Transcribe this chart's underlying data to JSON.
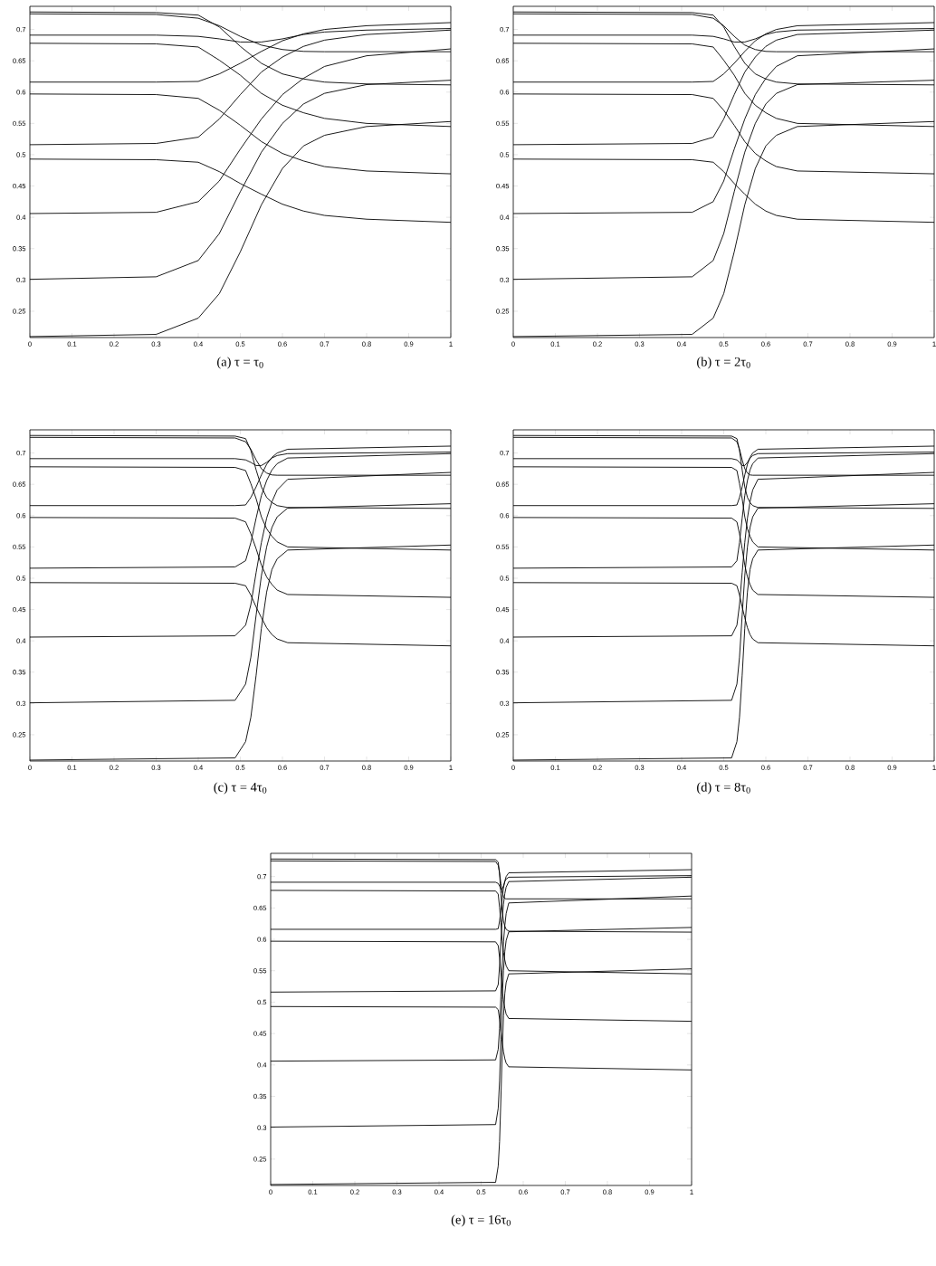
{
  "chart_data": [
    {
      "type": "line",
      "title": "(a) τ = τ$_{0}$",
      "x": [
        0,
        0.3,
        0.4,
        0.45,
        0.5,
        0.55,
        0.6,
        0.65,
        0.7,
        0.8,
        1
      ],
      "xlim": [
        0,
        1
      ],
      "ylim": [
        0.208,
        0.737
      ],
      "xticks": [
        0,
        0.1,
        0.2,
        0.3,
        0.4,
        0.5,
        0.6,
        0.7,
        0.8,
        0.9,
        1
      ],
      "yticks": [
        0.25,
        0.3,
        0.35,
        0.4,
        0.45,
        0.5,
        0.55,
        0.6,
        0.65,
        0.7
      ],
      "marker": "none",
      "line_style": "solid",
      "series": [
        {
          "color": "#000000",
          "values": [
            0.728,
            0.727,
            0.723,
            0.704,
            0.673,
            0.646,
            0.629,
            0.621,
            0.616,
            0.613,
            0.6115
          ]
        },
        {
          "color": "#000000",
          "values": [
            0.725,
            0.724,
            0.718,
            0.706,
            0.689,
            0.675,
            0.668,
            0.665,
            0.6645,
            0.6645,
            0.6645
          ]
        },
        {
          "color": "#000000",
          "values": [
            0.691,
            0.691,
            0.689,
            0.685,
            0.68,
            0.68,
            0.685,
            0.692,
            0.696,
            0.699,
            0.7015
          ]
        },
        {
          "color": "#000000",
          "values": [
            0.616,
            0.616,
            0.617,
            0.629,
            0.646,
            0.665,
            0.682,
            0.693,
            0.7,
            0.706,
            0.711
          ]
        },
        {
          "color": "#000000",
          "values": [
            0.678,
            0.677,
            0.672,
            0.651,
            0.627,
            0.598,
            0.579,
            0.567,
            0.558,
            0.55,
            0.545
          ]
        },
        {
          "color": "#000000",
          "values": [
            0.597,
            0.596,
            0.59,
            0.571,
            0.547,
            0.521,
            0.502,
            0.49,
            0.481,
            0.474,
            0.4695
          ]
        },
        {
          "color": "#000000",
          "values": [
            0.516,
            0.518,
            0.528,
            0.557,
            0.596,
            0.632,
            0.656,
            0.673,
            0.683,
            0.692,
            0.699
          ]
        },
        {
          "color": "#000000",
          "values": [
            0.493,
            0.492,
            0.488,
            0.473,
            0.454,
            0.437,
            0.421,
            0.41,
            0.403,
            0.397,
            0.392
          ]
        },
        {
          "color": "#000000",
          "values": [
            0.406,
            0.408,
            0.425,
            0.458,
            0.509,
            0.557,
            0.596,
            0.622,
            0.641,
            0.658,
            0.669
          ]
        },
        {
          "color": "#000000",
          "values": [
            0.301,
            0.305,
            0.331,
            0.374,
            0.441,
            0.504,
            0.55,
            0.581,
            0.598,
            0.612,
            0.619
          ]
        },
        {
          "color": "#000000",
          "values": [
            0.2095,
            0.213,
            0.239,
            0.278,
            0.345,
            0.42,
            0.478,
            0.514,
            0.531,
            0.545,
            0.553
          ]
        }
      ]
    },
    {
      "type": "line",
      "title": "(b) τ = 2τ$_{0}$",
      "x": [
        0,
        0.425,
        0.475,
        0.5,
        0.525,
        0.55,
        0.575,
        0.6,
        0.625,
        0.675,
        1
      ],
      "xlim": [
        0,
        1
      ],
      "ylim": [
        0.208,
        0.737
      ],
      "xticks": [
        0,
        0.1,
        0.2,
        0.3,
        0.4,
        0.5,
        0.6,
        0.7,
        0.8,
        0.9,
        1
      ],
      "yticks": [
        0.25,
        0.3,
        0.35,
        0.4,
        0.45,
        0.5,
        0.55,
        0.6,
        0.65,
        0.7
      ],
      "marker": "none",
      "line_style": "solid",
      "series": [
        {
          "color": "#000000",
          "values": [
            0.728,
            0.727,
            0.723,
            0.704,
            0.673,
            0.646,
            0.629,
            0.621,
            0.616,
            0.613,
            0.6115
          ]
        },
        {
          "color": "#000000",
          "values": [
            0.725,
            0.724,
            0.718,
            0.706,
            0.689,
            0.675,
            0.668,
            0.665,
            0.6645,
            0.6645,
            0.6645
          ]
        },
        {
          "color": "#000000",
          "values": [
            0.691,
            0.691,
            0.689,
            0.685,
            0.68,
            0.68,
            0.685,
            0.692,
            0.696,
            0.699,
            0.7015
          ]
        },
        {
          "color": "#000000",
          "values": [
            0.616,
            0.616,
            0.617,
            0.629,
            0.646,
            0.665,
            0.682,
            0.693,
            0.7,
            0.706,
            0.711
          ]
        },
        {
          "color": "#000000",
          "values": [
            0.678,
            0.677,
            0.672,
            0.651,
            0.627,
            0.598,
            0.579,
            0.567,
            0.558,
            0.55,
            0.545
          ]
        },
        {
          "color": "#000000",
          "values": [
            0.597,
            0.596,
            0.59,
            0.571,
            0.547,
            0.521,
            0.502,
            0.49,
            0.481,
            0.474,
            0.4695
          ]
        },
        {
          "color": "#000000",
          "values": [
            0.516,
            0.518,
            0.528,
            0.557,
            0.596,
            0.632,
            0.656,
            0.673,
            0.683,
            0.692,
            0.699
          ]
        },
        {
          "color": "#000000",
          "values": [
            0.493,
            0.492,
            0.488,
            0.473,
            0.454,
            0.437,
            0.421,
            0.41,
            0.403,
            0.397,
            0.392
          ]
        },
        {
          "color": "#000000",
          "values": [
            0.406,
            0.408,
            0.425,
            0.458,
            0.509,
            0.557,
            0.596,
            0.622,
            0.641,
            0.658,
            0.669
          ]
        },
        {
          "color": "#000000",
          "values": [
            0.301,
            0.305,
            0.331,
            0.374,
            0.441,
            0.504,
            0.55,
            0.581,
            0.598,
            0.612,
            0.619
          ]
        },
        {
          "color": "#000000",
          "values": [
            0.2095,
            0.213,
            0.239,
            0.278,
            0.345,
            0.42,
            0.478,
            0.514,
            0.531,
            0.545,
            0.553
          ]
        }
      ]
    },
    {
      "type": "line",
      "title": "(c) τ = 4τ$_{0}$",
      "x": [
        0,
        0.4875,
        0.5125,
        0.525,
        0.5375,
        0.55,
        0.5625,
        0.575,
        0.5875,
        0.6125,
        1
      ],
      "xlim": [
        0,
        1
      ],
      "ylim": [
        0.208,
        0.737
      ],
      "xticks": [
        0,
        0.1,
        0.2,
        0.3,
        0.4,
        0.5,
        0.6,
        0.7,
        0.8,
        0.9,
        1
      ],
      "yticks": [
        0.25,
        0.3,
        0.35,
        0.4,
        0.45,
        0.5,
        0.55,
        0.6,
        0.65,
        0.7
      ],
      "marker": "none",
      "line_style": "solid",
      "series": [
        {
          "color": "#000000",
          "values": [
            0.728,
            0.727,
            0.723,
            0.704,
            0.673,
            0.646,
            0.629,
            0.621,
            0.616,
            0.613,
            0.6115
          ]
        },
        {
          "color": "#000000",
          "values": [
            0.725,
            0.724,
            0.718,
            0.706,
            0.689,
            0.675,
            0.668,
            0.665,
            0.6645,
            0.6645,
            0.6645
          ]
        },
        {
          "color": "#000000",
          "values": [
            0.691,
            0.691,
            0.689,
            0.685,
            0.68,
            0.68,
            0.685,
            0.692,
            0.696,
            0.699,
            0.7015
          ]
        },
        {
          "color": "#000000",
          "values": [
            0.616,
            0.616,
            0.617,
            0.629,
            0.646,
            0.665,
            0.682,
            0.693,
            0.7,
            0.706,
            0.711
          ]
        },
        {
          "color": "#000000",
          "values": [
            0.678,
            0.677,
            0.672,
            0.651,
            0.627,
            0.598,
            0.579,
            0.567,
            0.558,
            0.55,
            0.545
          ]
        },
        {
          "color": "#000000",
          "values": [
            0.597,
            0.596,
            0.59,
            0.571,
            0.547,
            0.521,
            0.502,
            0.49,
            0.481,
            0.474,
            0.4695
          ]
        },
        {
          "color": "#000000",
          "values": [
            0.516,
            0.518,
            0.528,
            0.557,
            0.596,
            0.632,
            0.656,
            0.673,
            0.683,
            0.692,
            0.699
          ]
        },
        {
          "color": "#000000",
          "values": [
            0.493,
            0.492,
            0.488,
            0.473,
            0.454,
            0.437,
            0.421,
            0.41,
            0.403,
            0.397,
            0.392
          ]
        },
        {
          "color": "#000000",
          "values": [
            0.406,
            0.408,
            0.425,
            0.458,
            0.509,
            0.557,
            0.596,
            0.622,
            0.641,
            0.658,
            0.669
          ]
        },
        {
          "color": "#000000",
          "values": [
            0.301,
            0.305,
            0.331,
            0.374,
            0.441,
            0.504,
            0.55,
            0.581,
            0.598,
            0.612,
            0.619
          ]
        },
        {
          "color": "#000000",
          "values": [
            0.2095,
            0.213,
            0.239,
            0.278,
            0.345,
            0.42,
            0.478,
            0.514,
            0.531,
            0.545,
            0.553
          ]
        }
      ]
    },
    {
      "type": "line",
      "title": "(d) τ = 8τ$_{0}$",
      "x": [
        0,
        0.5187,
        0.5313,
        0.5375,
        0.5438,
        0.55,
        0.5563,
        0.5625,
        0.5688,
        0.5813,
        1
      ],
      "xlim": [
        0,
        1
      ],
      "ylim": [
        0.208,
        0.737
      ],
      "xticks": [
        0,
        0.1,
        0.2,
        0.3,
        0.4,
        0.5,
        0.6,
        0.7,
        0.8,
        0.9,
        1
      ],
      "yticks": [
        0.25,
        0.3,
        0.35,
        0.4,
        0.45,
        0.5,
        0.55,
        0.6,
        0.65,
        0.7
      ],
      "marker": "none",
      "line_style": "solid",
      "series": [
        {
          "color": "#000000",
          "values": [
            0.728,
            0.727,
            0.723,
            0.704,
            0.673,
            0.646,
            0.629,
            0.621,
            0.616,
            0.613,
            0.6115
          ]
        },
        {
          "color": "#000000",
          "values": [
            0.725,
            0.724,
            0.718,
            0.706,
            0.689,
            0.675,
            0.668,
            0.665,
            0.6645,
            0.6645,
            0.6645
          ]
        },
        {
          "color": "#000000",
          "values": [
            0.691,
            0.691,
            0.689,
            0.685,
            0.68,
            0.68,
            0.685,
            0.692,
            0.696,
            0.699,
            0.7015
          ]
        },
        {
          "color": "#000000",
          "values": [
            0.616,
            0.616,
            0.617,
            0.629,
            0.646,
            0.665,
            0.682,
            0.693,
            0.7,
            0.706,
            0.711
          ]
        },
        {
          "color": "#000000",
          "values": [
            0.678,
            0.677,
            0.672,
            0.651,
            0.627,
            0.598,
            0.579,
            0.567,
            0.558,
            0.55,
            0.545
          ]
        },
        {
          "color": "#000000",
          "values": [
            0.597,
            0.596,
            0.59,
            0.571,
            0.547,
            0.521,
            0.502,
            0.49,
            0.481,
            0.474,
            0.4695
          ]
        },
        {
          "color": "#000000",
          "values": [
            0.516,
            0.518,
            0.528,
            0.557,
            0.596,
            0.632,
            0.656,
            0.673,
            0.683,
            0.692,
            0.699
          ]
        },
        {
          "color": "#000000",
          "values": [
            0.493,
            0.492,
            0.488,
            0.473,
            0.454,
            0.437,
            0.421,
            0.41,
            0.403,
            0.397,
            0.392
          ]
        },
        {
          "color": "#000000",
          "values": [
            0.406,
            0.408,
            0.425,
            0.458,
            0.509,
            0.557,
            0.596,
            0.622,
            0.641,
            0.658,
            0.669
          ]
        },
        {
          "color": "#000000",
          "values": [
            0.301,
            0.305,
            0.331,
            0.374,
            0.441,
            0.504,
            0.55,
            0.581,
            0.598,
            0.612,
            0.619
          ]
        },
        {
          "color": "#000000",
          "values": [
            0.2095,
            0.213,
            0.239,
            0.278,
            0.345,
            0.42,
            0.478,
            0.514,
            0.531,
            0.545,
            0.553
          ]
        }
      ]
    },
    {
      "type": "line",
      "title": "(e) τ = 16τ$_{0}$",
      "x": [
        0,
        0.5344,
        0.5406,
        0.5438,
        0.5469,
        0.55,
        0.5531,
        0.5563,
        0.5594,
        0.5656,
        1
      ],
      "xlim": [
        0,
        1
      ],
      "ylim": [
        0.208,
        0.737
      ],
      "xticks": [
        0,
        0.1,
        0.2,
        0.3,
        0.4,
        0.5,
        0.6,
        0.7,
        0.8,
        0.9,
        1
      ],
      "yticks": [
        0.25,
        0.3,
        0.35,
        0.4,
        0.45,
        0.5,
        0.55,
        0.6,
        0.65,
        0.7
      ],
      "marker": "none",
      "line_style": "solid",
      "series": [
        {
          "color": "#000000",
          "values": [
            0.728,
            0.727,
            0.723,
            0.704,
            0.673,
            0.646,
            0.629,
            0.621,
            0.616,
            0.613,
            0.6115
          ]
        },
        {
          "color": "#000000",
          "values": [
            0.725,
            0.724,
            0.718,
            0.706,
            0.689,
            0.675,
            0.668,
            0.665,
            0.6645,
            0.6645,
            0.6645
          ]
        },
        {
          "color": "#000000",
          "values": [
            0.691,
            0.691,
            0.689,
            0.685,
            0.68,
            0.68,
            0.685,
            0.692,
            0.696,
            0.699,
            0.7015
          ]
        },
        {
          "color": "#000000",
          "values": [
            0.616,
            0.616,
            0.617,
            0.629,
            0.646,
            0.665,
            0.682,
            0.693,
            0.7,
            0.706,
            0.711
          ]
        },
        {
          "color": "#000000",
          "values": [
            0.678,
            0.677,
            0.672,
            0.651,
            0.627,
            0.598,
            0.579,
            0.567,
            0.558,
            0.55,
            0.545
          ]
        },
        {
          "color": "#000000",
          "values": [
            0.597,
            0.596,
            0.59,
            0.571,
            0.547,
            0.521,
            0.502,
            0.49,
            0.481,
            0.474,
            0.4695
          ]
        },
        {
          "color": "#000000",
          "values": [
            0.516,
            0.518,
            0.528,
            0.557,
            0.596,
            0.632,
            0.656,
            0.673,
            0.683,
            0.692,
            0.699
          ]
        },
        {
          "color": "#000000",
          "values": [
            0.493,
            0.492,
            0.488,
            0.473,
            0.454,
            0.437,
            0.421,
            0.41,
            0.403,
            0.397,
            0.392
          ]
        },
        {
          "color": "#000000",
          "values": [
            0.406,
            0.408,
            0.425,
            0.458,
            0.509,
            0.557,
            0.596,
            0.622,
            0.641,
            0.658,
            0.669
          ]
        },
        {
          "color": "#000000",
          "values": [
            0.301,
            0.305,
            0.331,
            0.374,
            0.441,
            0.504,
            0.55,
            0.581,
            0.598,
            0.612,
            0.619
          ]
        },
        {
          "color": "#000000",
          "values": [
            0.2095,
            0.213,
            0.239,
            0.278,
            0.345,
            0.42,
            0.478,
            0.514,
            0.531,
            0.545,
            0.553
          ]
        }
      ]
    }
  ]
}
